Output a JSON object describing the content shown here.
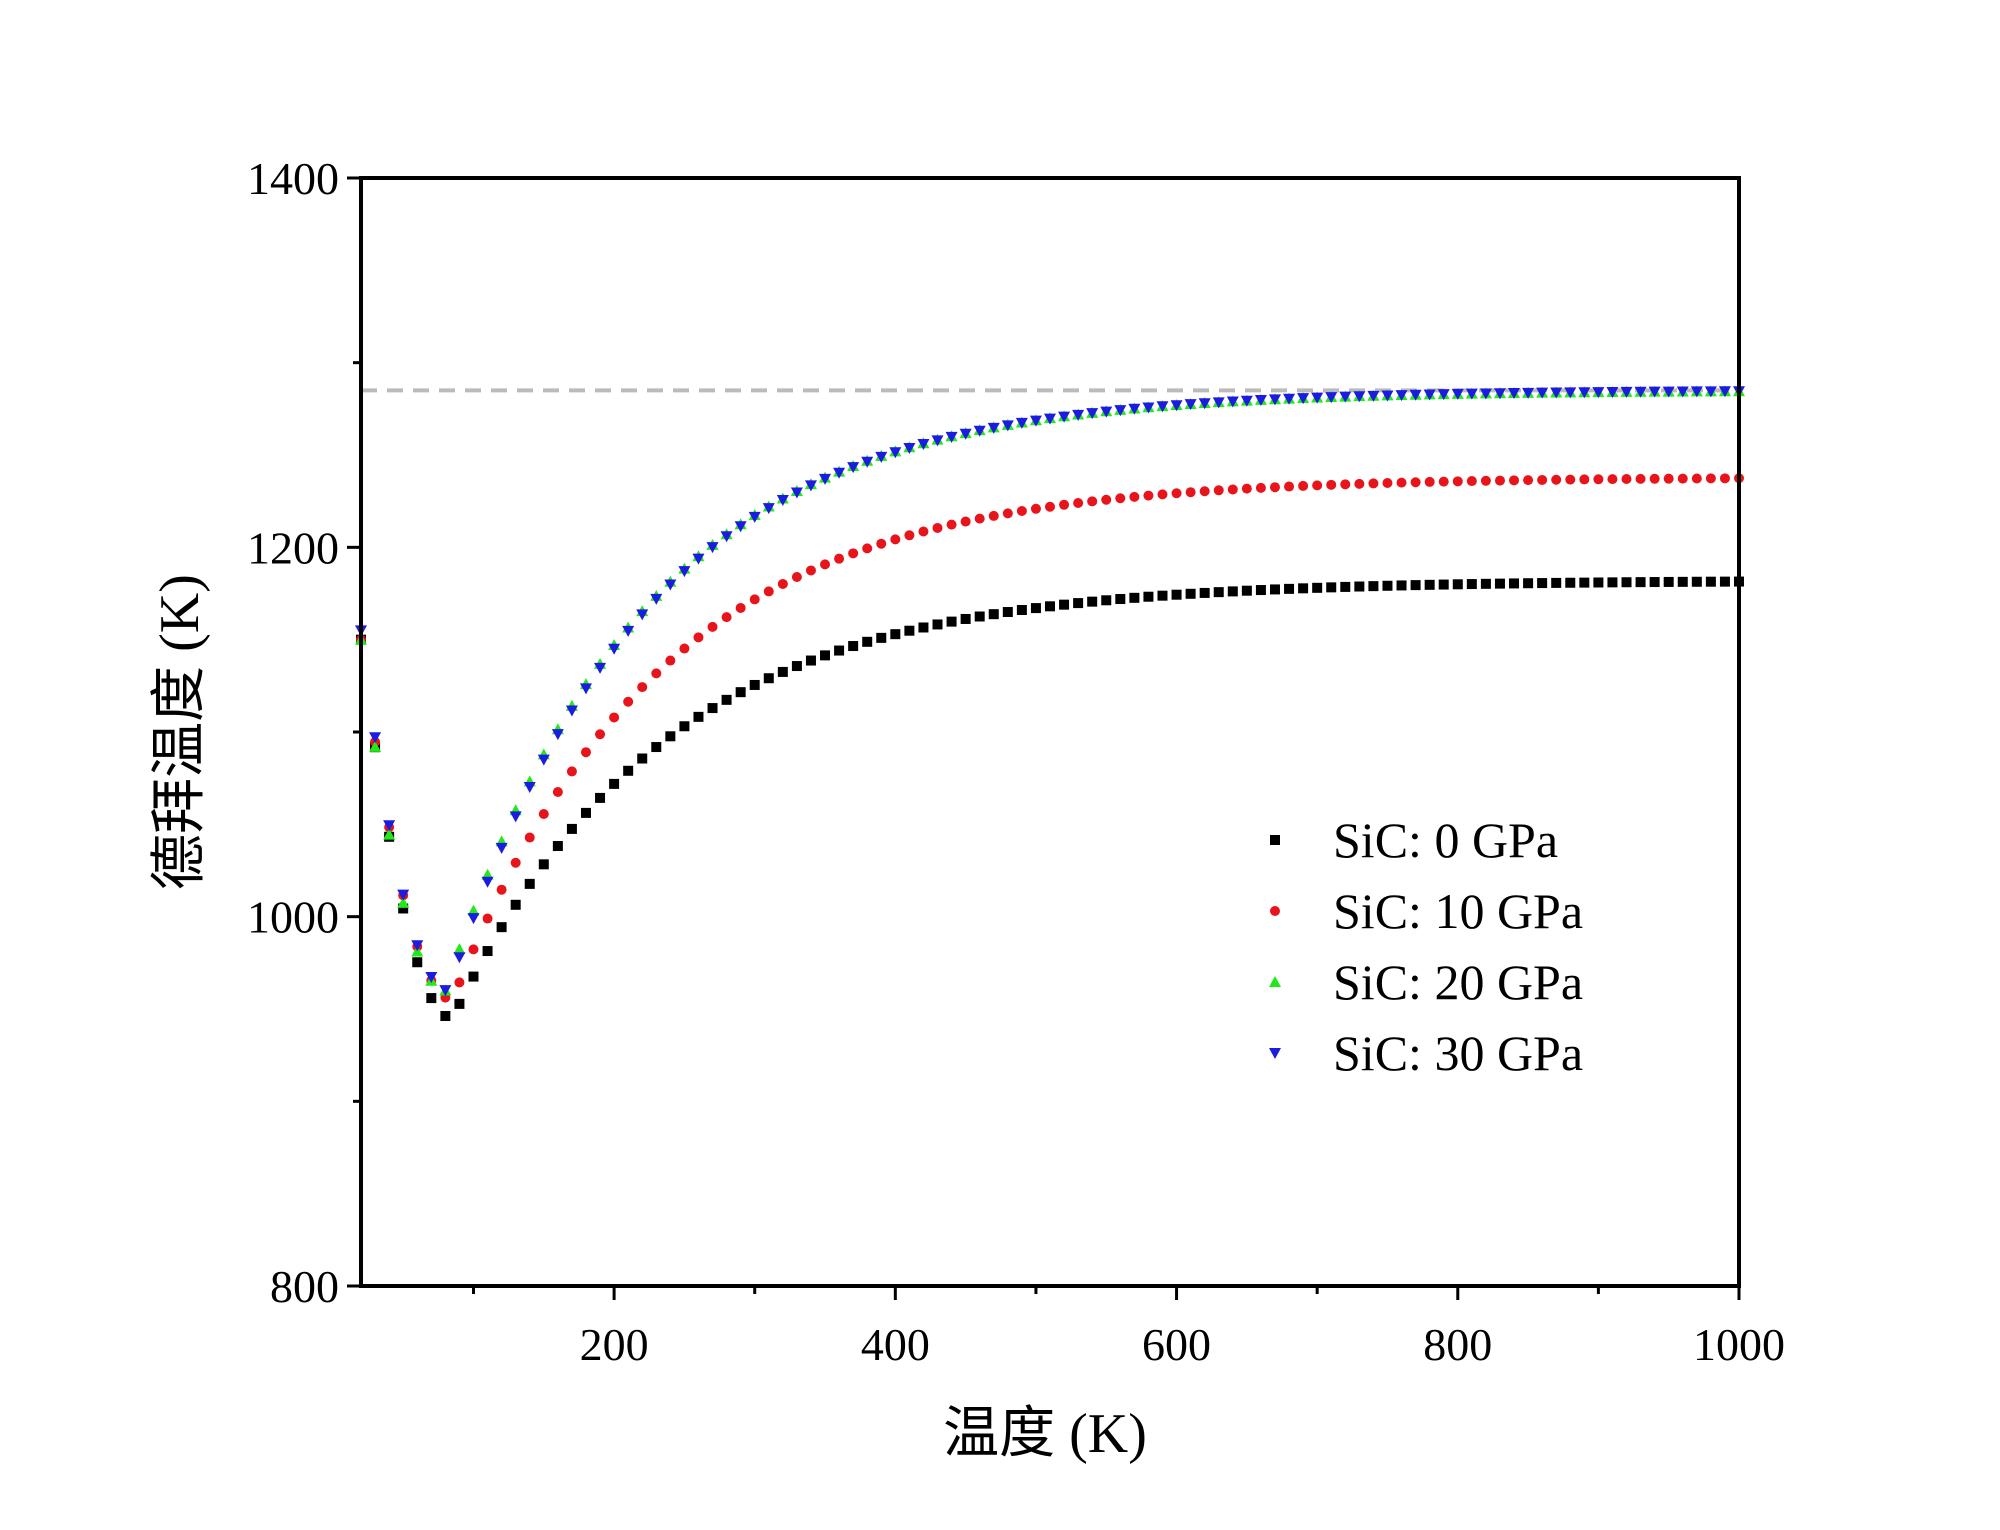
{
  "chart_data": {
    "type": "scatter",
    "xlabel": "温度 (K)",
    "ylabel": "德拜温度 (K)",
    "xlim": [
      20,
      1000
    ],
    "ylim": [
      800,
      1400
    ],
    "x_ticks": [
      200,
      400,
      600,
      800,
      1000
    ],
    "x_minor_ticks": [
      100,
      300,
      500,
      700,
      900
    ],
    "y_ticks": [
      800,
      1000,
      1200,
      1400
    ],
    "y_minor_ticks": [
      900,
      1100,
      1300
    ],
    "grid": false,
    "legend_position": "lower-right",
    "reference_line": {
      "y": 1285,
      "style": "dashed",
      "color": "#bbbbbb"
    },
    "series": [
      {
        "name": "SiC: 0 GPa",
        "marker": "square",
        "color": "#000000",
        "curve": {
          "start": 1150,
          "min": 945,
          "min_at": 85,
          "plateau": 1182,
          "k": 150
        },
        "x_step": 10
      },
      {
        "name": "SiC: 10 GPa",
        "marker": "circle",
        "color": "#e8141b",
        "curve": {
          "start": 1150,
          "min": 955,
          "min_at": 85,
          "plateau": 1238,
          "k": 148
        },
        "x_step": 10
      },
      {
        "name": "SiC: 20 GPa",
        "marker": "triangle-up",
        "color": "#23e81a",
        "curve": {
          "start": 1150,
          "min": 960,
          "min_at": 80,
          "plateau": 1285,
          "k": 140
        },
        "x_step": 10
      },
      {
        "name": "SiC: 30 GPa",
        "marker": "triangle-down",
        "color": "#1c1ce0",
        "curve": {
          "start": 1155,
          "min": 960,
          "min_at": 82,
          "plateau": 1285,
          "k": 140
        },
        "x_step": 10
      }
    ]
  }
}
